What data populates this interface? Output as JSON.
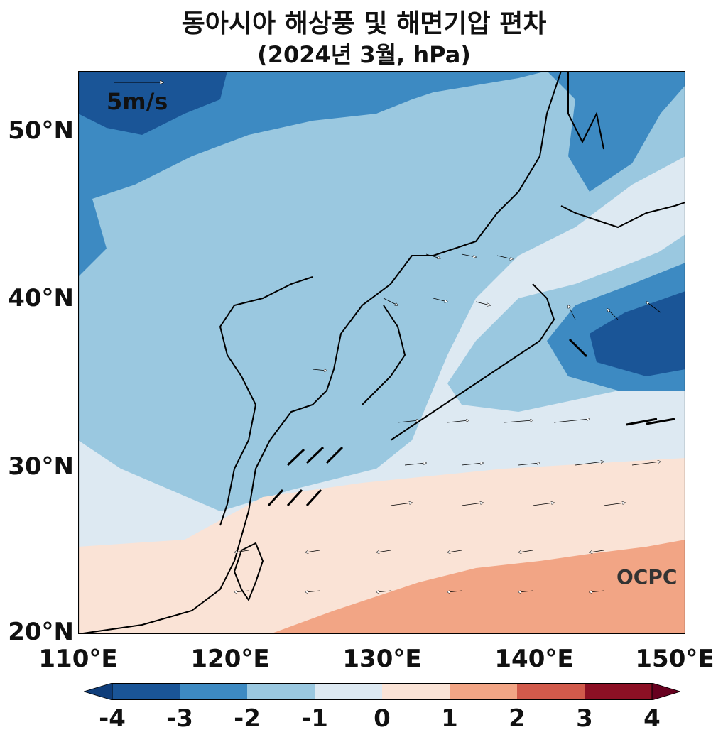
{
  "title": {
    "line1": "동아시아 해상풍 및 해면기압 편차",
    "line2": "(2024년 3월, hPa)"
  },
  "map": {
    "lon_range": [
      110,
      150
    ],
    "lat_range": [
      20,
      53.5
    ],
    "lat_ticks": [
      {
        "value": 50,
        "label": "50°N"
      },
      {
        "value": 40,
        "label": "40°N"
      },
      {
        "value": 30,
        "label": "30°N"
      },
      {
        "value": 20,
        "label": "20°N"
      }
    ],
    "lon_ticks": [
      {
        "value": 110,
        "label": "110°E"
      },
      {
        "value": 120,
        "label": "120°E"
      },
      {
        "value": 130,
        "label": "130°E"
      },
      {
        "value": 140,
        "label": "140°E"
      },
      {
        "value": 150,
        "label": "150°E"
      }
    ],
    "reference_vector_label": "5m/s",
    "watermark": "OCPC"
  },
  "colorbar": {
    "levels": [
      "-4",
      "-3",
      "-2",
      "-1",
      "0",
      "1",
      "2",
      "3",
      "4"
    ],
    "colors": [
      "#0f3d7a",
      "#1a5597",
      "#3d8ac2",
      "#9ac8e0",
      "#dde9f2",
      "#fae3d6",
      "#f2a585",
      "#d15a4b",
      "#8c1024",
      "#67001f"
    ]
  },
  "colors": {
    "cat1": "#1a5597",
    "cat2": "#3d8ac2",
    "cat3": "#9ac8e0",
    "cat4": "#dde9f2",
    "cat5": "#fae3d6",
    "cat6": "#f2a585"
  }
}
